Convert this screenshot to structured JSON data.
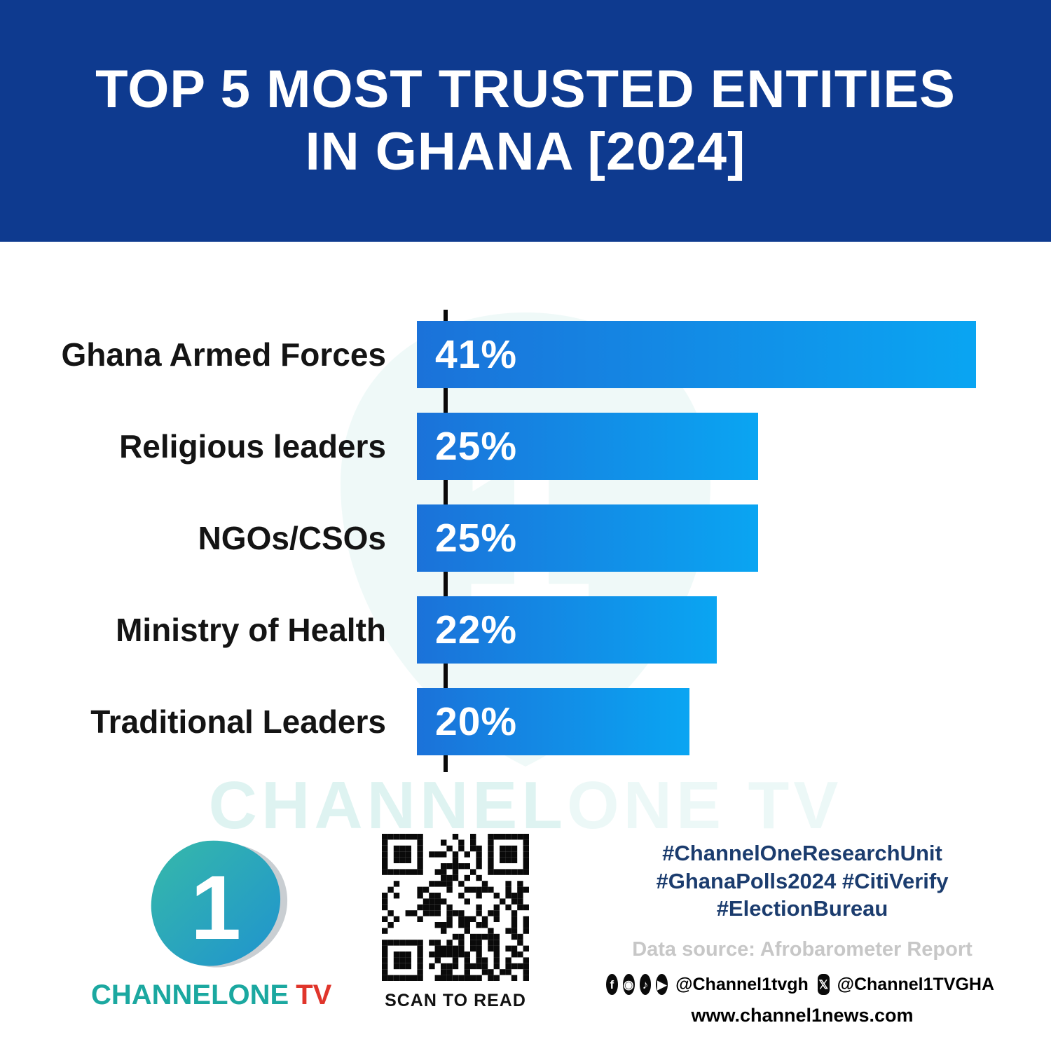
{
  "header": {
    "title_line1": "TOP 5 MOST TRUSTED ENTITIES",
    "title_line2": "IN GHANA [2024]"
  },
  "chart_data": {
    "type": "bar",
    "orientation": "horizontal",
    "title": "Top 5 most trusted entities in Ghana [2024]",
    "categories": [
      "Ghana Armed Forces",
      "Religious leaders",
      "NGOs/CSOs",
      "Ministry of Health",
      "Traditional Leaders"
    ],
    "values": [
      41,
      25,
      25,
      22,
      20
    ],
    "value_labels": [
      "41%",
      "25%",
      "25%",
      "22%",
      "20%"
    ],
    "xlim": [
      0,
      41
    ],
    "grid": false,
    "legend": false,
    "bar_color_start": "#1b72d9",
    "bar_color_end": "#0aa5f2"
  },
  "watermark": {
    "text_main": "CHANNEL",
    "text_light": "ONE TV"
  },
  "footer": {
    "logo": {
      "numeral": "1",
      "wordmark_main": "CHANNELONE",
      "wordmark_tv": "TV"
    },
    "qr_caption": "SCAN TO READ",
    "hashtags_line1": "#ChannelOneResearchUnit",
    "hashtags_line2": "#GhanaPolls2024 #CitiVerify",
    "hashtags_line3": "#ElectionBureau",
    "data_source": "Data source: Afrobarometer Report",
    "social": {
      "icons_group1": [
        "facebook-icon",
        "instagram-icon",
        "tiktok-icon",
        "youtube-icon"
      ],
      "handle1": "@Channel1tvgh",
      "icons_group2": [
        "x-icon"
      ],
      "handle2": "@Channel1TVGHA"
    },
    "website": "www.channel1news.com"
  },
  "colors": {
    "header_background": "#0e3a8f",
    "bar_gradient_start": "#1b72d9",
    "bar_gradient_end": "#0aa5f2",
    "hashtag_text": "#1b3c6e",
    "brand_teal": "#1ba8a0",
    "brand_red": "#e0352b",
    "data_source_gray": "#c7c7c7"
  }
}
